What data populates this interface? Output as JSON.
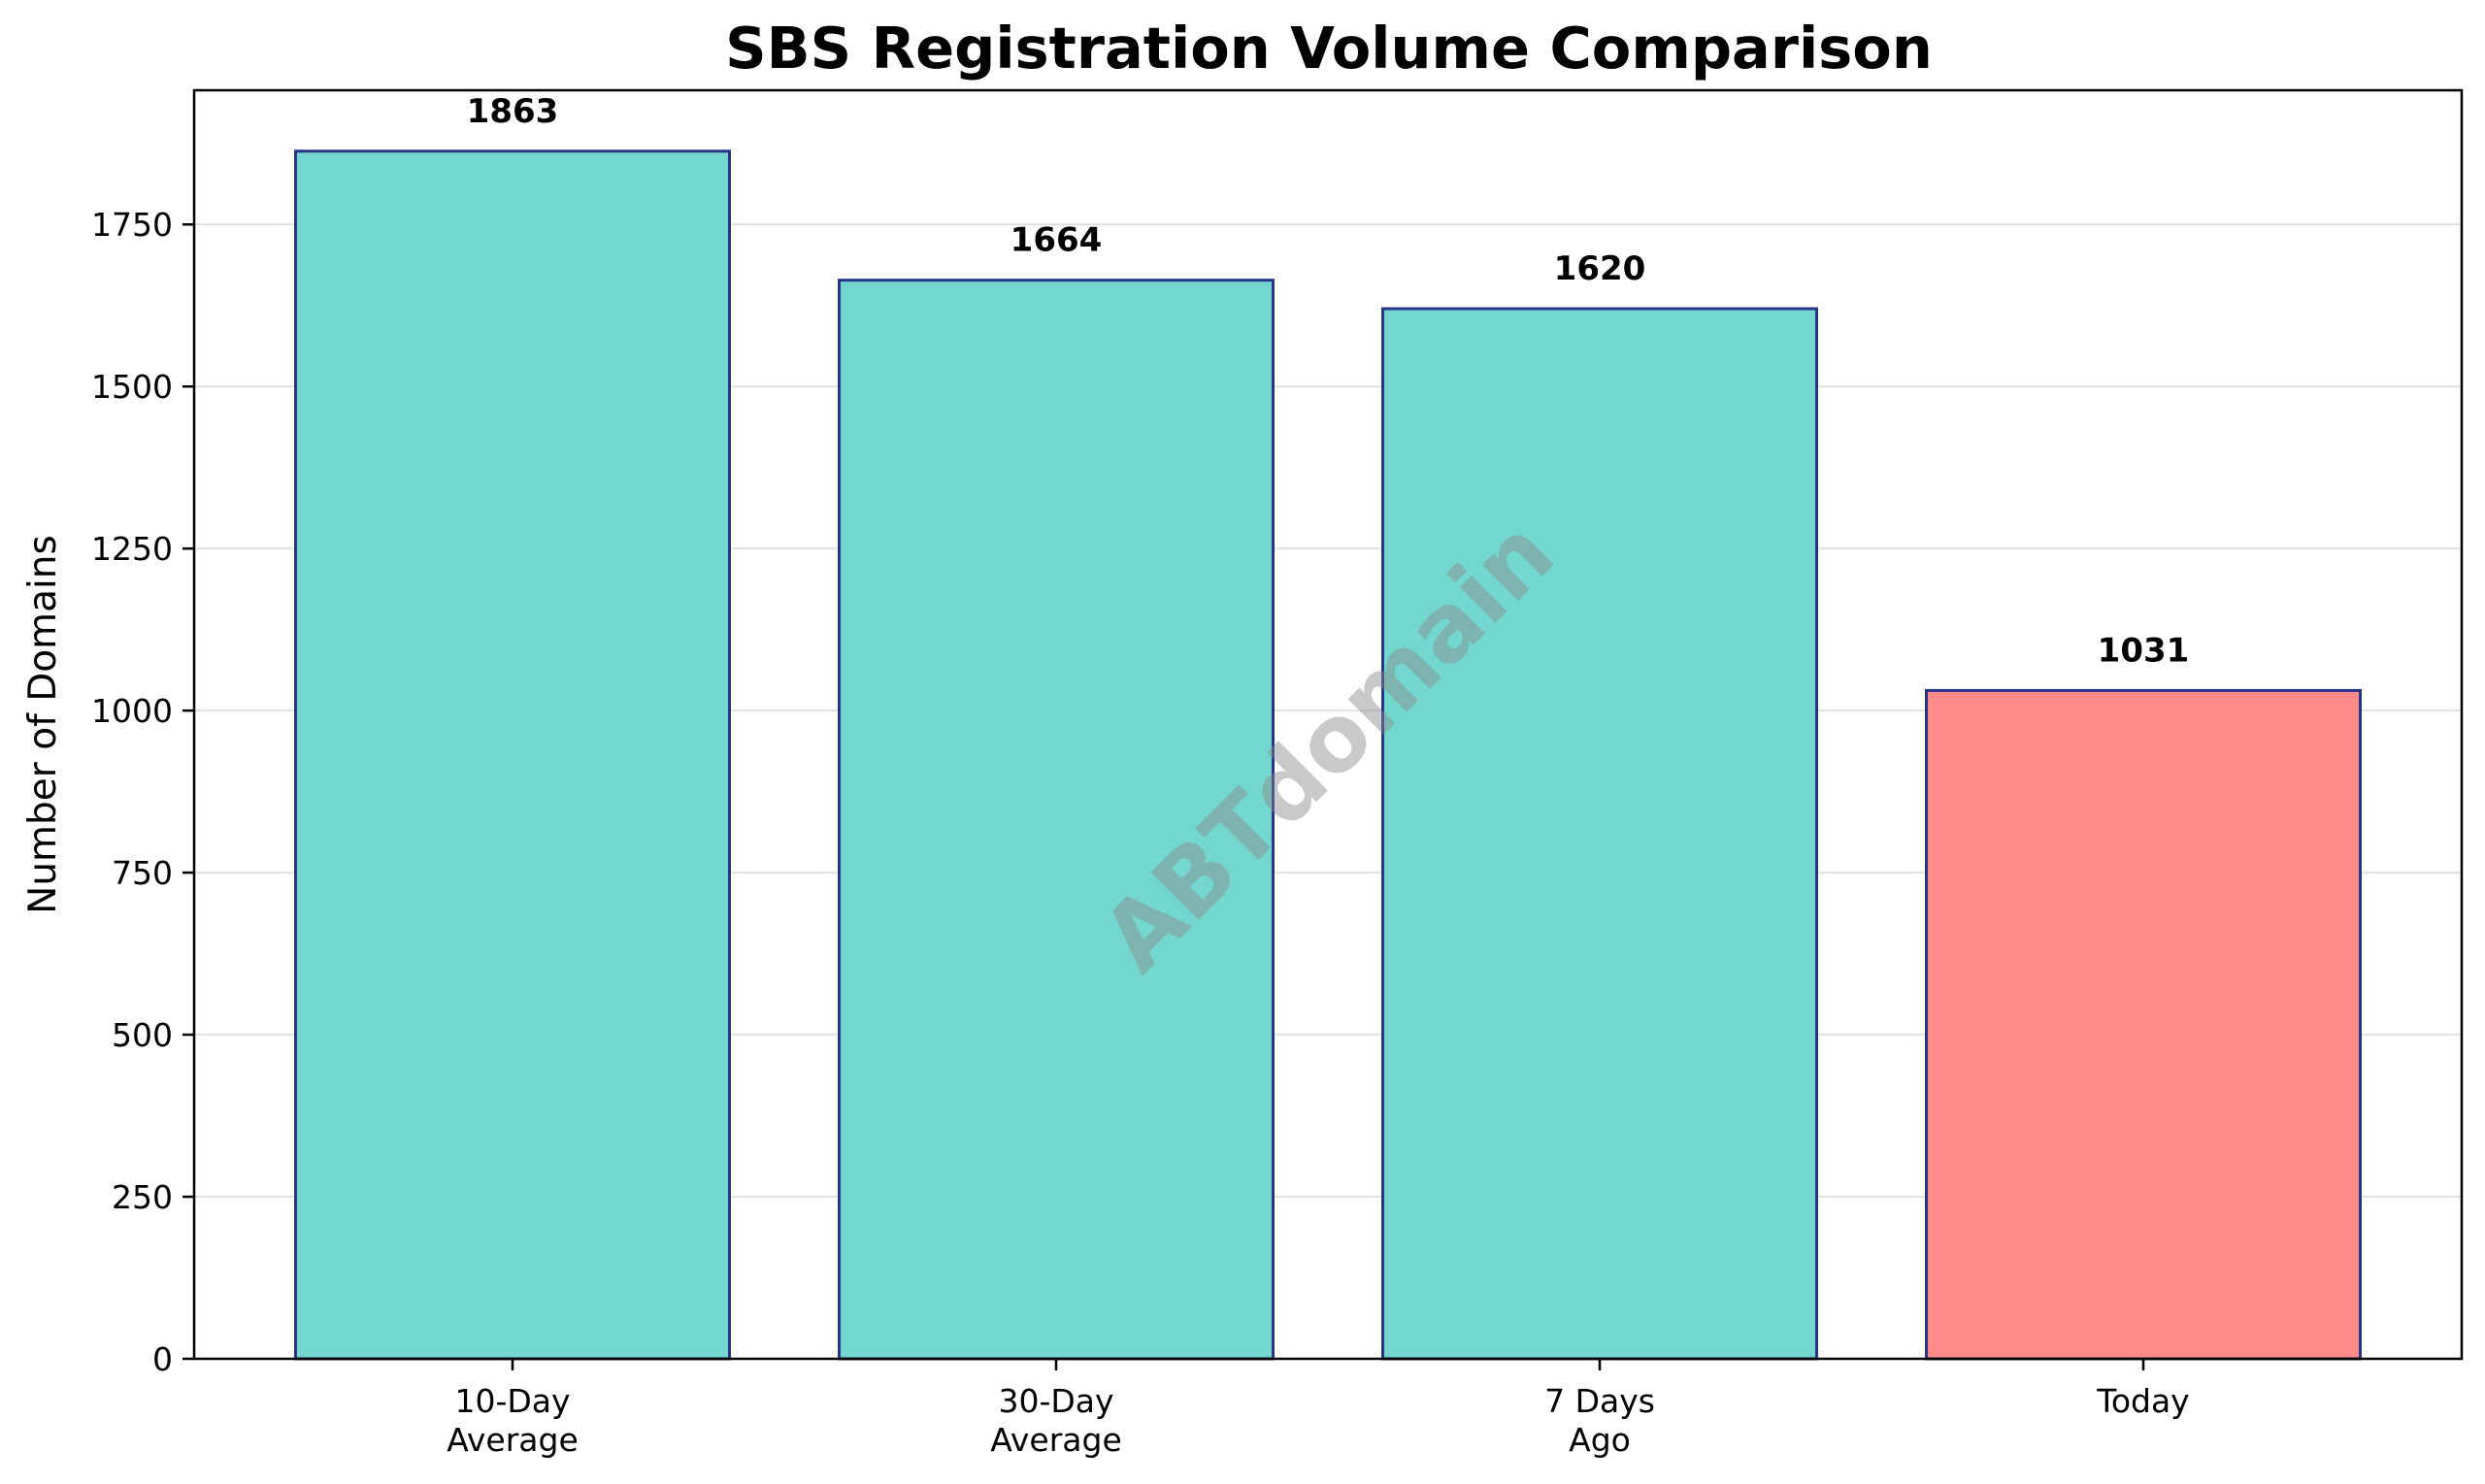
{
  "chart_data": {
    "type": "bar",
    "title": "SBS Registration Volume Comparison",
    "xlabel": "",
    "ylabel": "Number of Domains",
    "categories": [
      [
        "10-Day",
        "Average"
      ],
      [
        "30-Day",
        "Average"
      ],
      [
        "7 Days",
        "Ago"
      ],
      [
        "Today"
      ]
    ],
    "values": [
      1863,
      1664,
      1620,
      1031
    ],
    "data_labels": [
      "1863",
      "1664",
      "1620",
      "1031"
    ],
    "bar_colors": [
      "#73d7cf",
      "#73d7cf",
      "#73d7cf",
      "#ff8a8a"
    ],
    "bar_edge_color": "#27348b",
    "ylim": [
      0,
      1957
    ],
    "yticks": [
      0,
      250,
      500,
      750,
      1000,
      1250,
      1500,
      1750
    ],
    "grid": "y",
    "legend": "none",
    "watermark": "ABTdomain"
  }
}
